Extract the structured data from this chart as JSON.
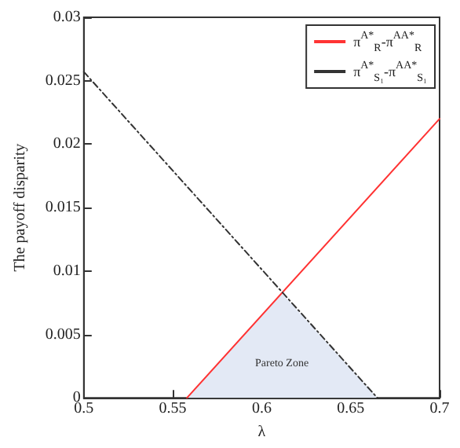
{
  "chart_data": {
    "type": "line",
    "xlabel": "λ",
    "ylabel": "The payoff disparity",
    "xlim": [
      0.5,
      0.7
    ],
    "xticks": [
      0.5,
      0.55,
      0.6,
      0.65,
      0.7
    ],
    "ylim": [
      0,
      0.03
    ],
    "yticks": [
      0,
      0.005,
      0.01,
      0.015,
      0.02,
      0.025,
      0.03
    ],
    "grid": false,
    "legend": "top right",
    "marker": "none",
    "series": [
      {
        "type": "area",
        "color": "#e3e9f5",
        "x": [
          0.558,
          0.611,
          0.665
        ],
        "values": [
          0,
          0.0083,
          0
        ]
      },
      {
        "name": "π$^{A*}$$_{R}$-π$^{AA*}$$_{R}$",
        "color": "#ff3333",
        "line_style": "solid",
        "x": [
          0.558,
          0.7
        ],
        "values": [
          0,
          0.022
        ]
      },
      {
        "name": "π$^{A*}$$_{S₁}$-π$^{AA*}$$_{S₁}$",
        "color": "#333333",
        "line_style": "dashed",
        "x": [
          0.5,
          0.665
        ],
        "values": [
          0.0257,
          0
        ]
      }
    ],
    "annotations": [
      "Pareto Zone"
    ]
  }
}
